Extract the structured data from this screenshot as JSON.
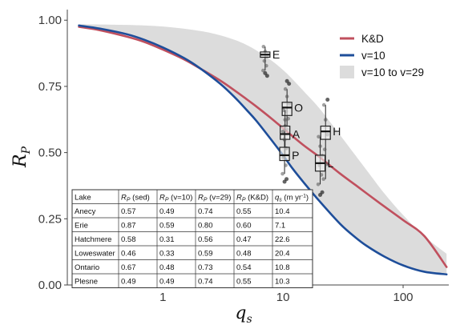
{
  "chart_data": {
    "type": "line",
    "xlabel_main": "q",
    "xlabel_sub": "s",
    "ylabel_main": "R",
    "ylabel_sub": "P",
    "xscale": "log",
    "xlim": [
      0.16,
      240
    ],
    "ylim": [
      0,
      1.04
    ],
    "xticks": [
      {
        "value": 1,
        "label": "1"
      },
      {
        "value": 10,
        "label": "10"
      },
      {
        "value": 100,
        "label": "100"
      }
    ],
    "yticks": [
      {
        "value": 0,
        "label": "0.00"
      },
      {
        "value": 0.25,
        "label": "0.25"
      },
      {
        "value": 0.5,
        "label": "0.50"
      },
      {
        "value": 0.75,
        "label": "0.75"
      },
      {
        "value": 1,
        "label": "1.00"
      }
    ],
    "grid": false,
    "legend_position": "top-right",
    "legend": [
      {
        "label": "K&D",
        "kind": "line",
        "color": "#c0505e"
      },
      {
        "label": "v=10",
        "kind": "line",
        "color": "#1e4e9a"
      },
      {
        "label": "v=10 to v=29",
        "kind": "fill",
        "color": "#dcdcdc"
      }
    ],
    "series": [
      {
        "name": "K&D",
        "color": "#c0505e",
        "x": [
          0.2,
          0.3,
          0.5,
          0.7,
          1,
          1.5,
          2,
          3,
          4,
          5,
          6,
          8,
          10,
          12,
          15,
          20,
          30,
          40,
          50,
          70,
          100,
          150,
          230
        ],
        "y": [
          0.975,
          0.962,
          0.938,
          0.918,
          0.889,
          0.852,
          0.82,
          0.772,
          0.733,
          0.701,
          0.674,
          0.629,
          0.592,
          0.562,
          0.526,
          0.484,
          0.42,
          0.378,
          0.345,
          0.296,
          0.245,
          0.185,
          0.068
        ]
      },
      {
        "name": "v=10",
        "color": "#1e4e9a",
        "x": [
          0.2,
          0.3,
          0.5,
          0.7,
          1,
          1.5,
          2,
          3,
          4,
          5,
          6,
          8,
          10,
          12,
          15,
          20,
          30,
          40,
          50,
          70,
          100,
          150,
          230
        ],
        "y": [
          0.98,
          0.968,
          0.947,
          0.926,
          0.897,
          0.857,
          0.821,
          0.76,
          0.707,
          0.66,
          0.62,
          0.548,
          0.49,
          0.44,
          0.385,
          0.318,
          0.23,
          0.18,
          0.147,
          0.107,
          0.074,
          0.05,
          0.04
        ]
      }
    ],
    "band": {
      "name": "v=10 to v=29",
      "color": "#dcdcdc",
      "x": [
        0.2,
        0.5,
        1,
        2,
        3,
        4,
        5,
        6,
        8,
        10,
        12,
        15,
        20,
        30,
        40,
        50,
        70,
        100,
        150,
        230
      ],
      "upper": [
        0.985,
        0.982,
        0.976,
        0.96,
        0.943,
        0.925,
        0.906,
        0.886,
        0.848,
        0.812,
        0.777,
        0.73,
        0.668,
        0.565,
        0.49,
        0.432,
        0.345,
        0.264,
        0.184,
        0.118
      ]
    },
    "boxplots": [
      {
        "label": "E",
        "x": 7.1,
        "median": 0.87,
        "q1": 0.86,
        "q3": 0.88,
        "whisker_low": 0.81,
        "whisker_high": 0.9,
        "outliers": [
          0.79,
          0.8
        ]
      },
      {
        "label": "O",
        "x": 10.8,
        "median": 0.67,
        "q1": 0.64,
        "q3": 0.69,
        "whisker_low": 0.6,
        "whisker_high": 0.74,
        "outliers": [
          0.76,
          0.77
        ]
      },
      {
        "label": "A",
        "x": 10.4,
        "median": 0.57,
        "q1": 0.55,
        "q3": 0.6,
        "whisker_low": 0.48,
        "whisker_high": 0.66,
        "outliers": []
      },
      {
        "label": "P",
        "x": 10.3,
        "median": 0.49,
        "q1": 0.47,
        "q3": 0.52,
        "whisker_low": 0.42,
        "whisker_high": 0.58,
        "outliers": [
          0.4,
          0.39
        ]
      },
      {
        "label": "H",
        "x": 22.6,
        "median": 0.58,
        "q1": 0.55,
        "q3": 0.6,
        "whisker_low": 0.4,
        "whisker_high": 0.68,
        "outliers": [
          0.7
        ]
      },
      {
        "label": "L",
        "x": 20.4,
        "median": 0.46,
        "q1": 0.43,
        "q3": 0.49,
        "whisker_low": 0.38,
        "whisker_high": 0.56,
        "outliers": [
          0.35,
          0.34
        ]
      }
    ],
    "table": {
      "headers": [
        "Lake",
        "R_P (sed)",
        "R_P (v=10)",
        "R_P (v=29)",
        "R_P (K&D)",
        "q_s (m yr^-1)"
      ],
      "rows": [
        [
          "Anecy",
          "0.57",
          "0.49",
          "0.74",
          "0.55",
          "10.4"
        ],
        [
          "Erie",
          "0.87",
          "0.59",
          "0.80",
          "0.60",
          "7.1"
        ],
        [
          "Hatchmere",
          "0.58",
          "0.31",
          "0.56",
          "0.47",
          "22.6"
        ],
        [
          "Loweswater",
          "0.46",
          "0.33",
          "0.59",
          "0.48",
          "20.4"
        ],
        [
          "Ontario",
          "0.67",
          "0.48",
          "0.73",
          "0.54",
          "10.8"
        ],
        [
          "Plesne",
          "0.49",
          "0.49",
          "0.74",
          "0.55",
          "10.3"
        ]
      ]
    }
  }
}
